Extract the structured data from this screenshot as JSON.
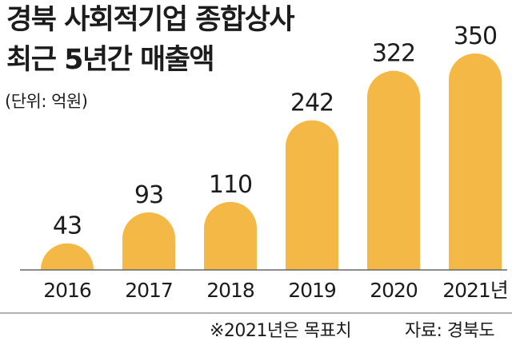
{
  "title_line1": "경북 사회적기업 종합상사",
  "title_line2": "최근 5년간 매출액",
  "unit": "(단위: 억원)",
  "footnote": "※2021년은 목표치",
  "source": "자료: 경북도",
  "colors": {
    "bar": "#F3B846",
    "axis": "#666666",
    "text": "#1c1c1c"
  },
  "chart_data": {
    "type": "bar",
    "categories": [
      "2016",
      "2017",
      "2018",
      "2019",
      "2020",
      "2021년"
    ],
    "values": [
      43,
      93,
      110,
      242,
      322,
      350
    ],
    "value_labels": [
      "43",
      "93",
      "110",
      "242",
      "322",
      "350"
    ],
    "title": "경북 사회적기업 종합상사 최근 5년간 매출액",
    "ylabel": "(단위: 억원)",
    "ylim": [
      0,
      350
    ],
    "grid": false,
    "bar_shape": "rounded-top"
  }
}
